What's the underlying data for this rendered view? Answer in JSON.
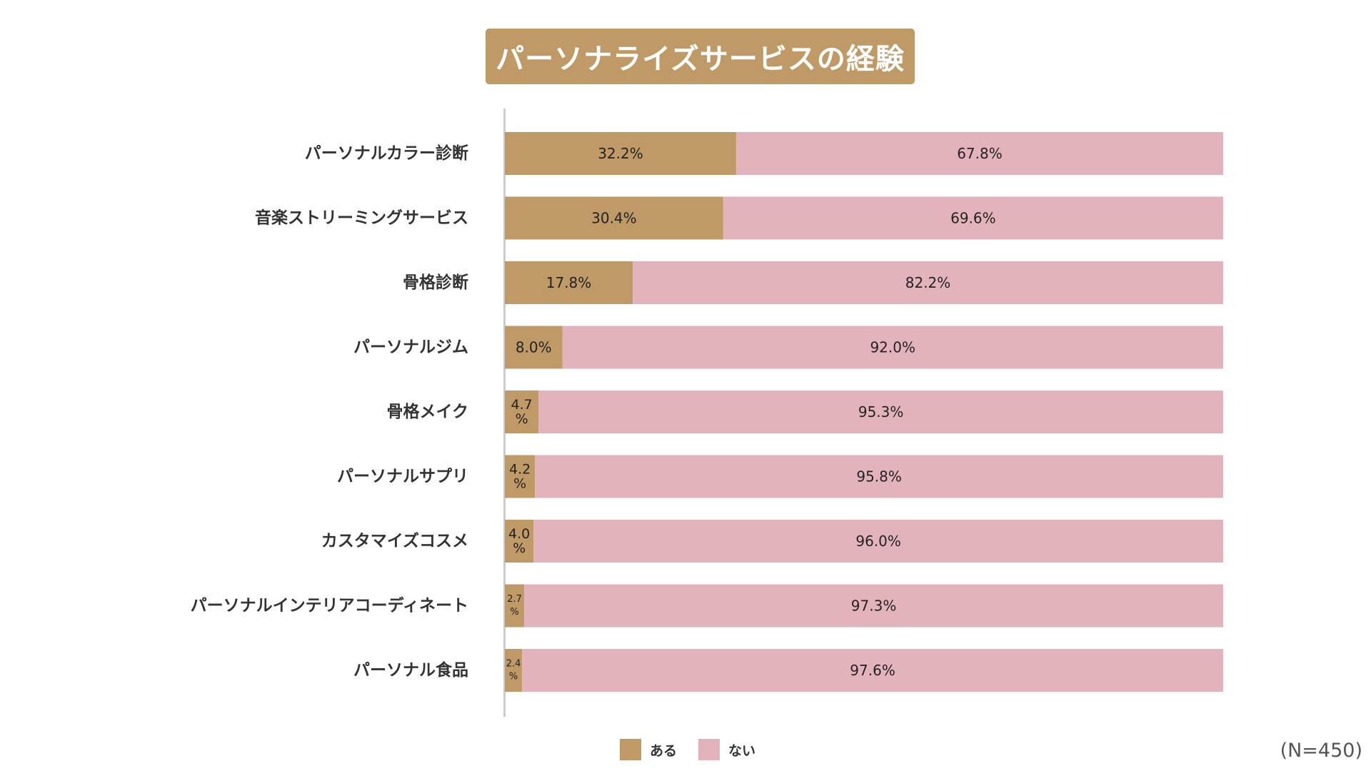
{
  "title": "パーソナライズサービスの経験",
  "note": "(N=450)",
  "colors": {
    "yes": "#bf9a66",
    "no": "#e3b3bc",
    "text": "#333333",
    "axis": "#cccccc"
  },
  "legend": [
    {
      "label": "ある",
      "color": "#bf9a66"
    },
    {
      "label": "ない",
      "color": "#e3b3bc"
    }
  ],
  "chart_data": {
    "type": "bar",
    "orientation": "horizontal",
    "stacked": true,
    "percent": true,
    "title": "パーソナライズサービスの経験",
    "categories": [
      "パーソナルカラー診断",
      "音楽ストリーミングサービス",
      "骨格診断",
      "パーソナルジム",
      "骨格メイク",
      "パーソナルサプリ",
      "カスタマイズコスメ",
      "パーソナルインテリアコーディネート",
      "パーソナル食品"
    ],
    "series": [
      {
        "name": "ある",
        "values": [
          32.2,
          30.4,
          17.8,
          8.0,
          4.7,
          4.2,
          4.0,
          2.7,
          2.4
        ]
      },
      {
        "name": "ない",
        "values": [
          67.8,
          69.6,
          82.2,
          92.0,
          95.3,
          95.8,
          96.0,
          97.3,
          97.6
        ]
      }
    ],
    "xlim": [
      0,
      100
    ],
    "legend_position": "bottom",
    "grid": false
  }
}
